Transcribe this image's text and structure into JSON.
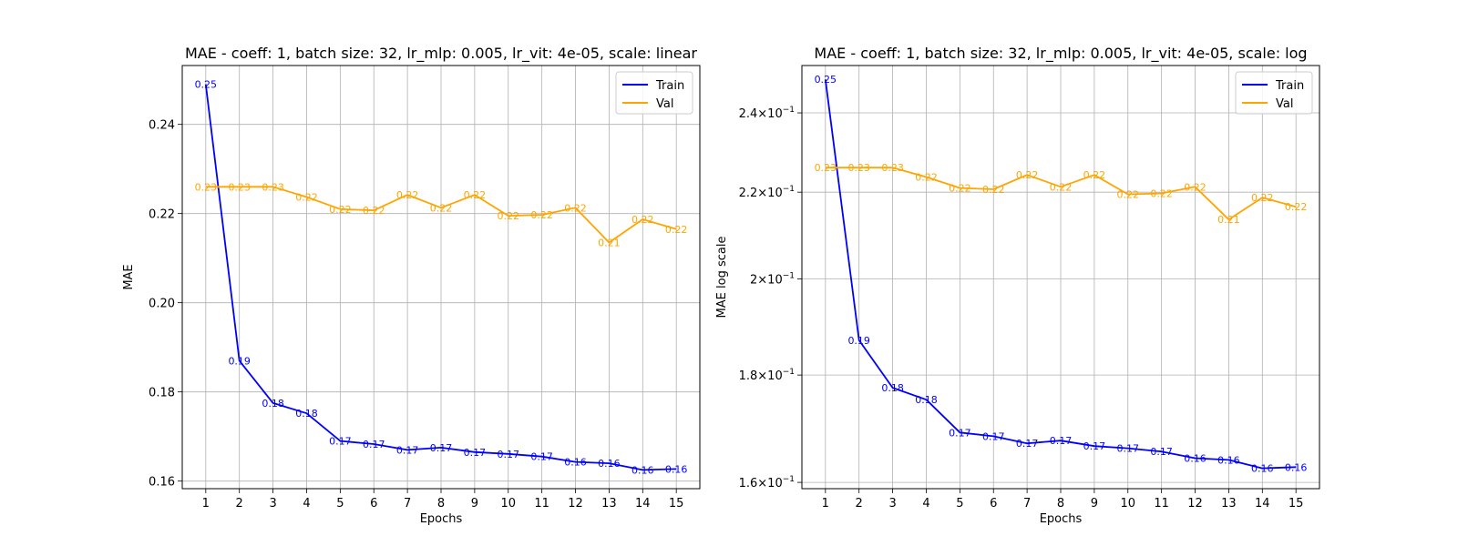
{
  "colors": {
    "train": "#0000ff",
    "val": "#ffa500",
    "grid": "#b0b0b0",
    "axes": "#000000"
  },
  "chart_data": [
    {
      "type": "line",
      "title": "MAE - coeff: 1, batch size: 32, lr_mlp: 0.005, lr_vit: 4e-05, scale: linear",
      "xlabel": "Epochs",
      "ylabel": "MAE",
      "scale": "linear",
      "x": [
        1,
        2,
        3,
        4,
        5,
        6,
        7,
        8,
        9,
        10,
        11,
        12,
        13,
        14,
        15
      ],
      "xlim": [
        0.3,
        15.7
      ],
      "ylim": [
        0.1583,
        0.2532
      ],
      "yticks": [
        0.16,
        0.18,
        0.2,
        0.22,
        0.24
      ],
      "ytick_labels": [
        "0.16",
        "0.18",
        "0.20",
        "0.22",
        "0.24"
      ],
      "grid": true,
      "legend": "top-right",
      "series": [
        {
          "name": "Train",
          "color": "#0000ff",
          "values": [
            0.249,
            0.187,
            0.1775,
            0.1752,
            0.169,
            0.1683,
            0.167,
            0.1675,
            0.1665,
            0.1661,
            0.1655,
            0.1643,
            0.164,
            0.1625,
            0.1627
          ],
          "labels": [
            "0.25",
            "0.19",
            "0.18",
            "0.18",
            "0.17",
            "0.17",
            "0.17",
            "0.17",
            "0.17",
            "0.17",
            "0.17",
            "0.16",
            "0.16",
            "0.16",
            "0.16"
          ]
        },
        {
          "name": "Val",
          "color": "#ffa500",
          "values": [
            0.226,
            0.226,
            0.226,
            0.2237,
            0.221,
            0.2207,
            0.2242,
            0.2213,
            0.2242,
            0.2195,
            0.2197,
            0.2213,
            0.2135,
            0.2187,
            0.2165
          ],
          "labels": [
            "0.23",
            "0.23",
            "0.23",
            "0.22",
            "0.22",
            "0.22",
            "0.22",
            "0.22",
            "0.22",
            "0.22",
            "0.22",
            "0.22",
            "0.21",
            "0.22",
            "0.22"
          ]
        }
      ]
    },
    {
      "type": "line",
      "title": "MAE - coeff: 1, batch size: 32, lr_mlp: 0.005, lr_vit: 4e-05, scale: log",
      "xlabel": "Epochs",
      "ylabel": "MAE log scale",
      "scale": "log",
      "x": [
        1,
        2,
        3,
        4,
        5,
        6,
        7,
        8,
        9,
        10,
        11,
        12,
        13,
        14,
        15
      ],
      "xlim": [
        0.3,
        15.7
      ],
      "ylim": [
        0.1589,
        0.2528
      ],
      "yticks": [
        0.16,
        0.18,
        0.2,
        0.22,
        0.24
      ],
      "ytick_labels": [
        {
          "mant": "1.6",
          "exp": "−1"
        },
        {
          "mant": "1.8",
          "exp": "−1"
        },
        {
          "mant": "2",
          "exp": "−1"
        },
        {
          "mant": "2.2",
          "exp": "−1"
        },
        {
          "mant": "2.4",
          "exp": "−1"
        }
      ],
      "grid": true,
      "legend": "top-right",
      "series": [
        {
          "name": "Train",
          "color": "#0000ff",
          "values": [
            0.249,
            0.187,
            0.1775,
            0.1752,
            0.169,
            0.1683,
            0.167,
            0.1675,
            0.1665,
            0.1661,
            0.1655,
            0.1643,
            0.164,
            0.1625,
            0.1627
          ],
          "labels": [
            "0.25",
            "0.19",
            "0.18",
            "0.18",
            "0.17",
            "0.17",
            "0.17",
            "0.17",
            "0.17",
            "0.17",
            "0.17",
            "0.16",
            "0.16",
            "0.16",
            "0.16"
          ]
        },
        {
          "name": "Val",
          "color": "#ffa500",
          "values": [
            0.226,
            0.226,
            0.226,
            0.2237,
            0.221,
            0.2207,
            0.2242,
            0.2213,
            0.2242,
            0.2195,
            0.2197,
            0.2213,
            0.2135,
            0.2187,
            0.2165
          ],
          "labels": [
            "0.23",
            "0.23",
            "0.23",
            "0.22",
            "0.22",
            "0.22",
            "0.22",
            "0.22",
            "0.22",
            "0.22",
            "0.22",
            "0.22",
            "0.21",
            "0.22",
            "0.22"
          ]
        }
      ]
    }
  ]
}
